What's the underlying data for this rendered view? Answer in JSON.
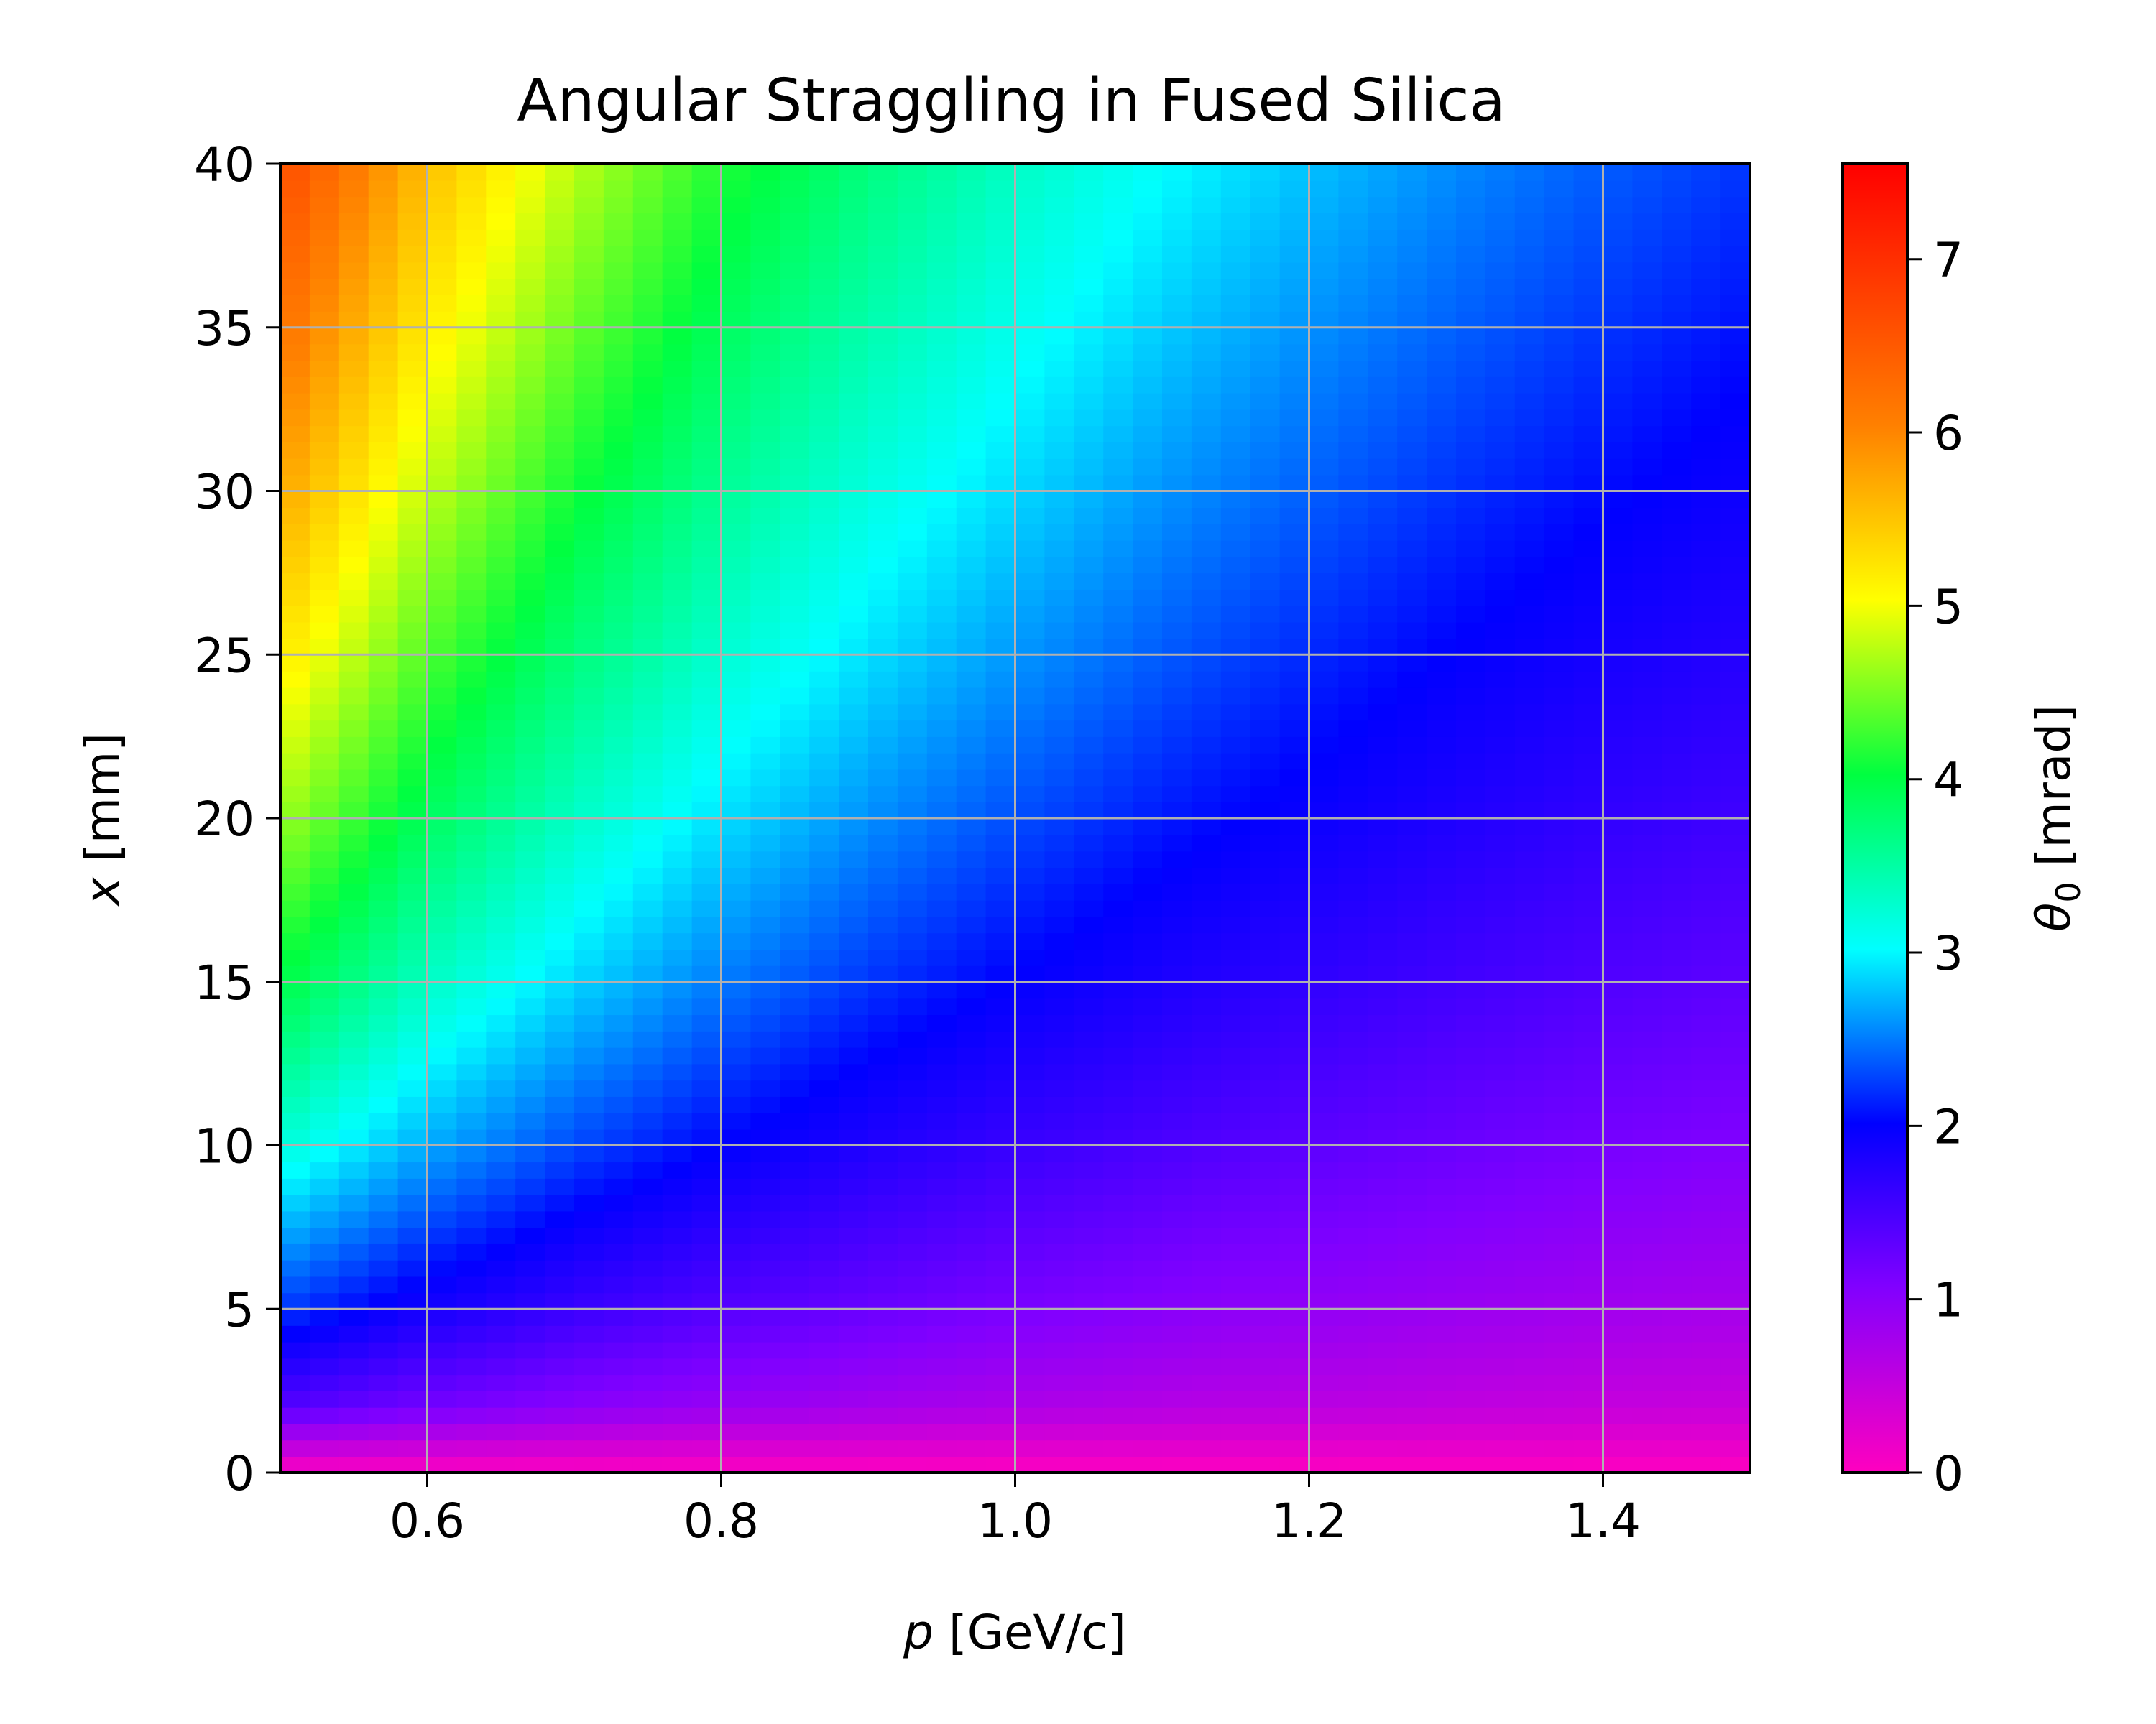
{
  "chart_data": {
    "type": "heatmap",
    "title": "Angular Straggling in Fused Silica",
    "xlabel_symbol": "p",
    "xlabel_unit": " [GeV/c]",
    "ylabel_symbol": "x",
    "ylabel_unit": " [mm]",
    "colorbar_label_symbol": "θ",
    "colorbar_label_subscript": "0",
    "colorbar_label_unit": " [mrad]",
    "colormap": "gist_rainbow_r",
    "xlim": [
      0.5,
      1.5
    ],
    "ylim": [
      0,
      40
    ],
    "clim": [
      0,
      7.55
    ],
    "x_ticks": [
      {
        "value": 0.6,
        "label": "0.6"
      },
      {
        "value": 0.8,
        "label": "0.8"
      },
      {
        "value": 1.0,
        "label": "1.0"
      },
      {
        "value": 1.2,
        "label": "1.2"
      },
      {
        "value": 1.4,
        "label": "1.4"
      }
    ],
    "y_ticks": [
      {
        "value": 0,
        "label": "0"
      },
      {
        "value": 5,
        "label": "5"
      },
      {
        "value": 10,
        "label": "10"
      },
      {
        "value": 15,
        "label": "15"
      },
      {
        "value": 20,
        "label": "20"
      },
      {
        "value": 25,
        "label": "25"
      },
      {
        "value": 30,
        "label": "30"
      },
      {
        "value": 35,
        "label": "35"
      },
      {
        "value": 40,
        "label": "40"
      }
    ],
    "colorbar_ticks": [
      {
        "value": 0,
        "label": "0"
      },
      {
        "value": 1,
        "label": "1"
      },
      {
        "value": 2,
        "label": "2"
      },
      {
        "value": 3,
        "label": "3"
      },
      {
        "value": 4,
        "label": "4"
      },
      {
        "value": 5,
        "label": "5"
      },
      {
        "value": 6,
        "label": "6"
      },
      {
        "value": 7,
        "label": "7"
      }
    ],
    "grid": true,
    "p_values_gev": [
      0.5,
      0.6,
      0.7,
      0.8,
      0.9,
      1.0,
      1.1,
      1.2,
      1.3,
      1.4,
      1.5
    ],
    "x_values_mm": [
      0,
      2,
      5,
      10,
      15,
      20,
      25,
      30,
      35,
      40
    ],
    "theta0_mrad": [
      [
        0.0,
        0.0,
        0.0,
        0.0,
        0.0,
        0.0,
        0.0,
        0.0,
        0.0,
        0.0,
        0.0
      ],
      [
        1.4,
        1.17,
        1.0,
        0.88,
        0.78,
        0.7,
        0.64,
        0.59,
        0.54,
        0.5,
        0.47
      ],
      [
        2.24,
        1.87,
        1.6,
        1.4,
        1.25,
        1.12,
        1.02,
        0.93,
        0.86,
        0.8,
        0.75
      ],
      [
        3.22,
        2.69,
        2.3,
        2.02,
        1.79,
        1.61,
        1.47,
        1.34,
        1.24,
        1.15,
        1.07
      ],
      [
        4.0,
        3.33,
        2.86,
        2.5,
        2.22,
        2.0,
        1.82,
        1.67,
        1.54,
        1.43,
        1.33
      ],
      [
        4.64,
        3.87,
        3.32,
        2.9,
        2.58,
        2.32,
        2.11,
        1.94,
        1.79,
        1.66,
        1.55
      ],
      [
        5.21,
        4.34,
        3.72,
        3.26,
        2.9,
        2.61,
        2.37,
        2.17,
        2.0,
        1.86,
        1.74
      ],
      [
        5.73,
        4.78,
        4.09,
        3.58,
        3.18,
        2.87,
        2.6,
        2.39,
        2.2,
        2.05,
        1.91
      ],
      [
        6.21,
        5.18,
        4.44,
        3.88,
        3.45,
        3.11,
        2.82,
        2.59,
        2.39,
        2.22,
        2.07
      ],
      [
        6.66,
        5.55,
        4.76,
        4.16,
        3.7,
        3.33,
        3.03,
        2.78,
        2.56,
        2.38,
        2.22
      ]
    ]
  }
}
